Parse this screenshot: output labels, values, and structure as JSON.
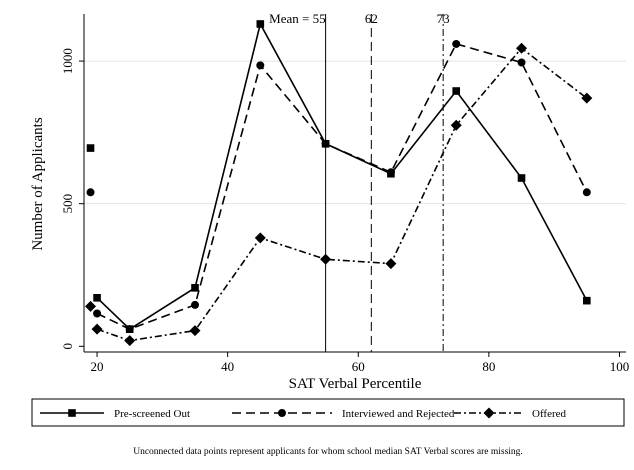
{
  "chart_data": {
    "type": "line",
    "xlabel": "SAT Verbal Percentile",
    "ylabel": "Number of Applicants",
    "xlim": [
      18,
      101
    ],
    "ylim": [
      -20,
      1165
    ],
    "xticks": [
      20,
      40,
      60,
      80,
      100
    ],
    "yticks": [
      0,
      500,
      1000
    ],
    "grid": "horizontal",
    "legend_placement": "bottom",
    "vlines": [
      {
        "x": 55,
        "label": "Mean = 55",
        "style": "solid"
      },
      {
        "x": 62,
        "label": "62",
        "style": "dashed"
      },
      {
        "x": 73,
        "label": "73",
        "style": "dashdot"
      }
    ],
    "series": [
      {
        "name": "Pre-screened Out",
        "marker": "square",
        "line_style": "solid",
        "x": [
          20,
          25,
          35,
          45,
          55,
          65,
          75,
          85,
          95
        ],
        "y": [
          170,
          60,
          205,
          1130,
          710,
          605,
          895,
          590,
          160
        ],
        "unconnected": {
          "x": 19,
          "y": 695
        }
      },
      {
        "name": "Interviewed and Rejected",
        "marker": "circle",
        "line_style": "dashed",
        "x": [
          20,
          25,
          35,
          45,
          55,
          65,
          75,
          85,
          95
        ],
        "y": [
          115,
          60,
          145,
          985,
          710,
          610,
          1060,
          995,
          540
        ],
        "unconnected": {
          "x": 19,
          "y": 540
        }
      },
      {
        "name": "Offered",
        "marker": "diamond",
        "line_style": "dashdot",
        "x": [
          20,
          25,
          35,
          45,
          55,
          65,
          75,
          85,
          95
        ],
        "y": [
          60,
          20,
          55,
          380,
          305,
          290,
          775,
          1045,
          870
        ],
        "unconnected": {
          "x": 19,
          "y": 140
        }
      }
    ],
    "note": "Unconnected data points represent applicants for whom school median SAT Verbal scores are missing."
  }
}
